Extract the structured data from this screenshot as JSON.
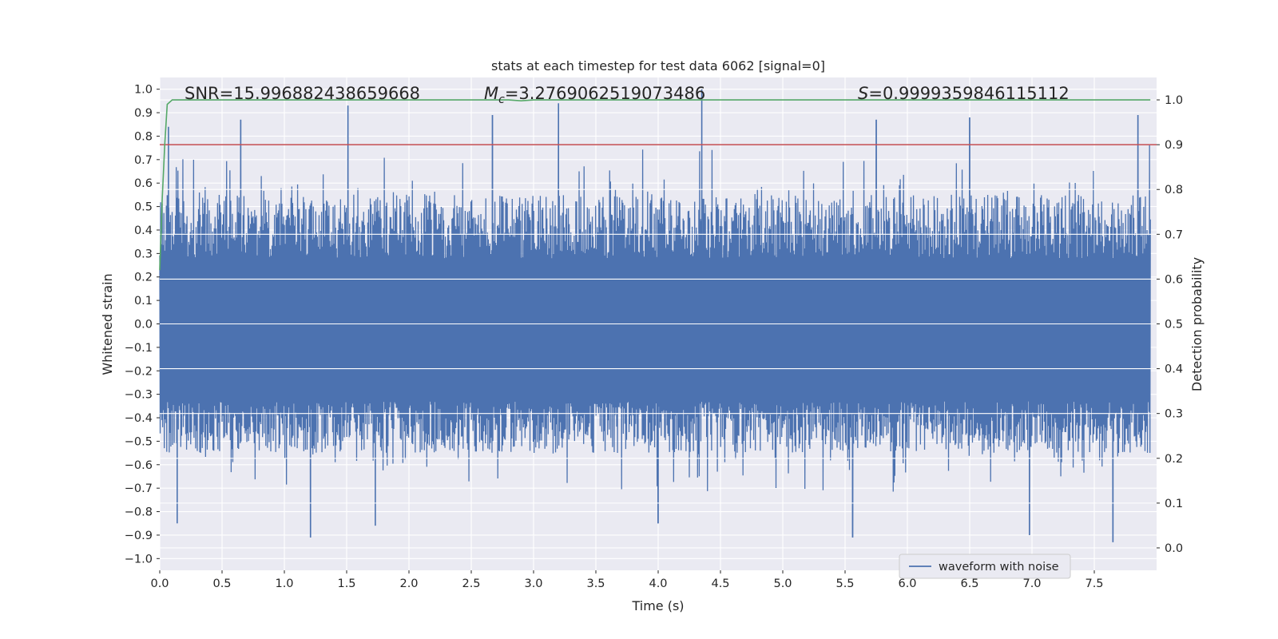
{
  "chart_data": {
    "type": "line",
    "title": "stats at each timestep for test data 6062 [signal=0]",
    "xlabel": "Time (s)",
    "ylabel": "Whitened strain",
    "y2label": "Detection probability",
    "xlim": [
      0.0,
      8.0
    ],
    "ylim": [
      -1.05,
      1.05
    ],
    "y2lim": [
      -0.05,
      1.05
    ],
    "xticks": [
      "0.0",
      "0.5",
      "1.0",
      "1.5",
      "2.0",
      "2.5",
      "3.0",
      "3.5",
      "4.0",
      "4.5",
      "5.0",
      "5.5",
      "6.0",
      "6.5",
      "7.0",
      "7.5"
    ],
    "yticks": [
      "1.0",
      "0.9",
      "0.8",
      "0.7",
      "0.6",
      "0.5",
      "0.4",
      "0.3",
      "0.2",
      "0.1",
      "0.0",
      "−0.1",
      "−0.2",
      "−0.3",
      "−0.4",
      "−0.5",
      "−0.6",
      "−0.7",
      "−0.8",
      "−0.9",
      "−1.0"
    ],
    "y2ticks": [
      "1.0",
      "0.9",
      "0.8",
      "0.7",
      "0.6",
      "0.5",
      "0.4",
      "0.3",
      "0.2",
      "0.1",
      "0.0"
    ],
    "annotations": {
      "snr": "SNR=15.996882438659668",
      "mc_symbol": "M",
      "mc_sub": "c",
      "mc_value": "=3.2769062519073486",
      "s_symbol": "S",
      "s_value": "=0.9999359846115112"
    },
    "legend": {
      "label": "waveform with noise",
      "location": "lower-right"
    },
    "threshold": {
      "axis": "right",
      "value": 0.9,
      "color": "#c44e52"
    },
    "detection_probability": {
      "color": "#55a868",
      "t": [
        0.0,
        0.02,
        0.04,
        0.06,
        0.1,
        0.15,
        2.8,
        2.9,
        3.0,
        7.95
      ],
      "p": [
        0.62,
        0.78,
        0.9,
        0.99,
        1.0,
        1.0,
        1.0,
        0.998,
        1.0,
        1.0
      ]
    },
    "series": [
      {
        "name": "waveform with noise",
        "color": "#4c72b0",
        "t_range": [
          0.0,
          7.95
        ],
        "envelope_typical_max": 0.55,
        "envelope_typical_min": -0.55,
        "peaks": [
          {
            "t": 0.07,
            "y": 0.84
          },
          {
            "t": 0.65,
            "y": 0.87
          },
          {
            "t": 1.51,
            "y": 0.93
          },
          {
            "t": 2.67,
            "y": 0.89
          },
          {
            "t": 3.2,
            "y": 0.94
          },
          {
            "t": 4.35,
            "y": 1.0
          },
          {
            "t": 5.75,
            "y": 0.87
          },
          {
            "t": 6.5,
            "y": 0.88
          },
          {
            "t": 7.85,
            "y": 0.89
          }
        ],
        "troughs": [
          {
            "t": 0.14,
            "y": -0.85
          },
          {
            "t": 1.21,
            "y": -0.91
          },
          {
            "t": 1.73,
            "y": -0.86
          },
          {
            "t": 4.0,
            "y": -0.85
          },
          {
            "t": 5.56,
            "y": -0.91
          },
          {
            "t": 6.98,
            "y": -0.9
          },
          {
            "t": 7.65,
            "y": -0.93
          }
        ]
      }
    ],
    "colors": {
      "background": "#eaeaf2",
      "grid": "#ffffff",
      "text": "#262626"
    }
  }
}
